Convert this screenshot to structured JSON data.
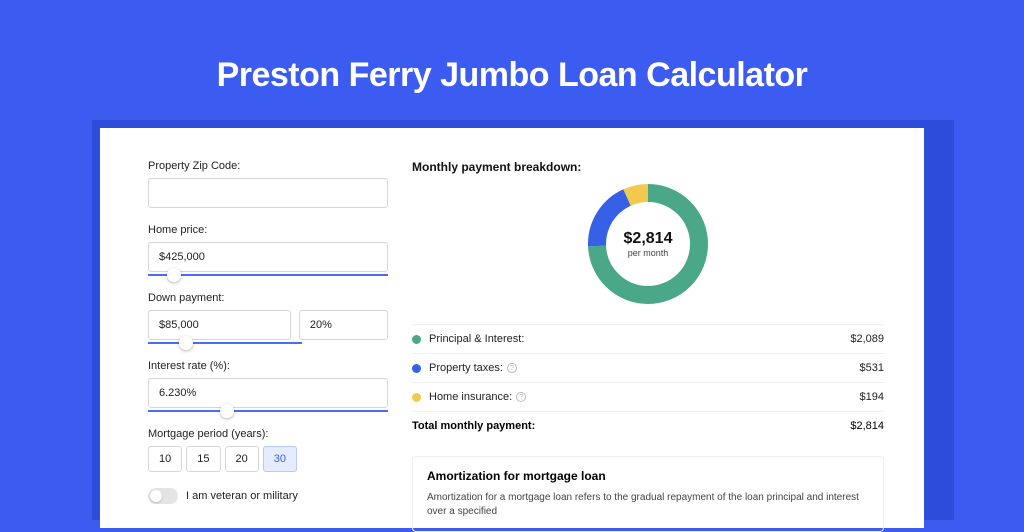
{
  "page": {
    "title": "Preston Ferry Jumbo Loan Calculator",
    "background_color": "#3b5bf1",
    "accent_color": "#4a6cf7"
  },
  "form": {
    "zip_label": "Property Zip Code:",
    "zip_value": "",
    "home_price_label": "Home price:",
    "home_price_value": "$425,000",
    "home_price_slider_pct": 8,
    "down_payment_label": "Down payment:",
    "down_payment_value": "$85,000",
    "down_payment_pct_value": "20%",
    "down_payment_slider_pct": 20,
    "interest_label": "Interest rate (%):",
    "interest_value": "6.230%",
    "interest_slider_pct": 30,
    "period_label": "Mortgage period (years):",
    "periods": [
      "10",
      "15",
      "20",
      "30"
    ],
    "period_selected_index": 3,
    "veteran_label": "I am veteran or military",
    "veteran_on": false
  },
  "breakdown": {
    "title": "Monthly payment breakdown:",
    "donut": {
      "amount": "$2,814",
      "sub": "per month",
      "size": 120,
      "ring_width": 18,
      "segments": [
        {
          "name": "principal_interest",
          "value": 2089,
          "color": "#4aa889"
        },
        {
          "name": "property_taxes",
          "value": 531,
          "color": "#3660e6"
        },
        {
          "name": "home_insurance",
          "value": 194,
          "color": "#f2c94c"
        }
      ]
    },
    "rows": [
      {
        "dot": "#4aa889",
        "label": "Principal & Interest:",
        "info": false,
        "value": "$2,089"
      },
      {
        "dot": "#3660e6",
        "label": "Property taxes:",
        "info": true,
        "value": "$531"
      },
      {
        "dot": "#f2c94c",
        "label": "Home insurance:",
        "info": true,
        "value": "$194"
      }
    ],
    "total_label": "Total monthly payment:",
    "total_value": "$2,814"
  },
  "amortization": {
    "title": "Amortization for mortgage loan",
    "text": "Amortization for a mortgage loan refers to the gradual repayment of the loan principal and interest over a specified"
  }
}
